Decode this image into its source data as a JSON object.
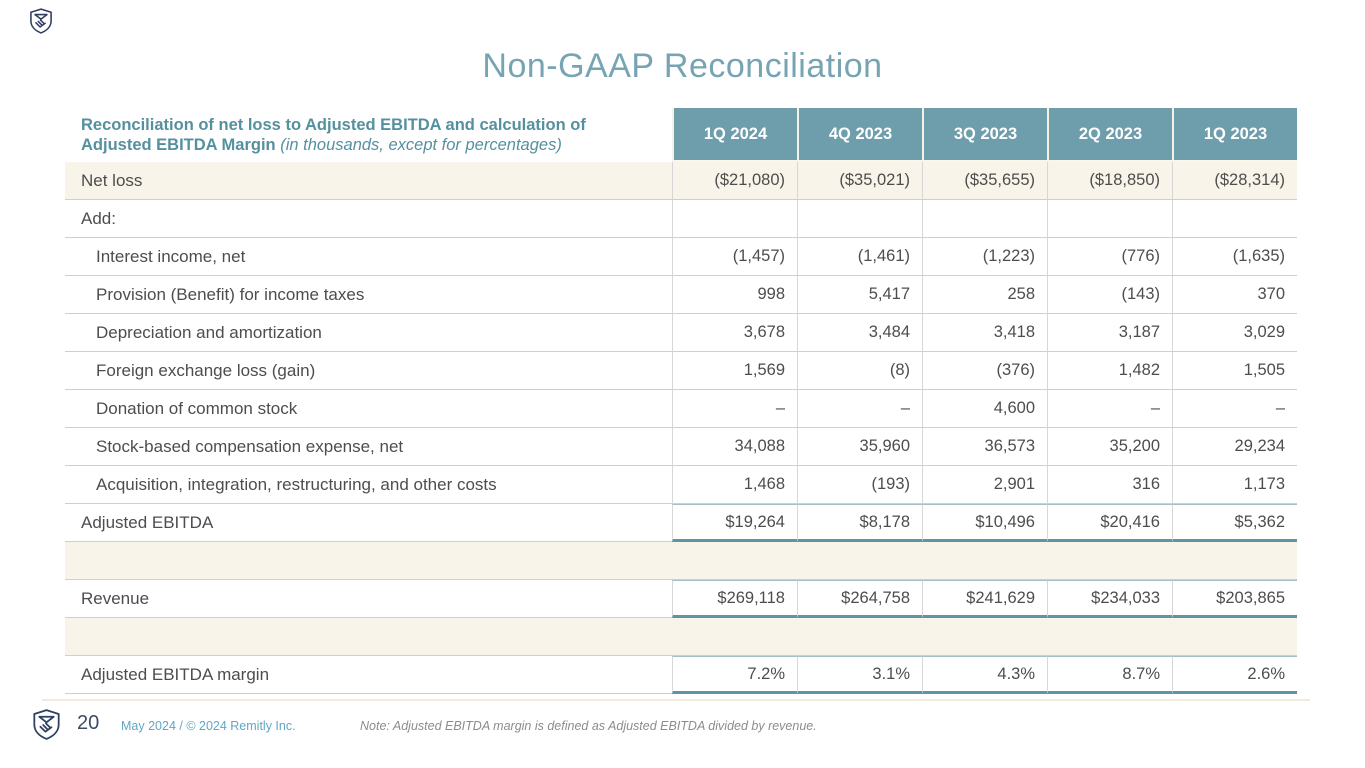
{
  "slide": {
    "title": "Non-GAAP Reconciliation",
    "page_number": "20",
    "footer_copyright": "May 2024 / © 2024 Remitly Inc.",
    "footer_note": "Note: Adjusted EBITDA margin is defined as Adjusted EBITDA divided by revenue."
  },
  "icons": {
    "top_left": "remitly-shield-logo",
    "footer": "remitly-shield-logo"
  },
  "colors": {
    "title_teal": "#76a4b3",
    "header_bg_teal": "#6e9dac",
    "header_label_teal": "#55909f",
    "highlight_cream": "#f8f4e9",
    "row_border_gray": "#cfcfcf",
    "total_border_teal": "#5e95a5",
    "body_text": "#4d4d4d",
    "footer_blue": "#5fa8c6",
    "logo_navy": "#2e3f60",
    "note_gray": "#8c8c8c"
  },
  "table": {
    "header_bold": "Reconciliation of net loss to Adjusted EBITDA and calculation of Adjusted EBITDA Margin",
    "header_italic": "(in thousands, except for percentages)",
    "columns": [
      "1Q 2024",
      "4Q 2023",
      "3Q 2023",
      "2Q 2023",
      "1Q 2023"
    ],
    "rows": [
      {
        "label": "Net loss",
        "style": "highlight",
        "values": [
          "($21,080)",
          "($35,021)",
          "($35,655)",
          "($18,850)",
          "($28,314)"
        ]
      },
      {
        "label": "Add:",
        "style": "plain",
        "values": [
          "",
          "",
          "",
          "",
          ""
        ]
      },
      {
        "label": "Interest income, net",
        "style": "indent",
        "values": [
          "(1,457)",
          "(1,461)",
          "(1,223)",
          "(776)",
          "(1,635)"
        ]
      },
      {
        "label": "Provision (Benefit) for income taxes",
        "style": "indent",
        "values": [
          "998",
          "5,417",
          "258",
          "(143)",
          "370"
        ]
      },
      {
        "label": "Depreciation and amortization",
        "style": "indent",
        "values": [
          "3,678",
          "3,484",
          "3,418",
          "3,187",
          "3,029"
        ]
      },
      {
        "label": "Foreign exchange loss (gain)",
        "style": "indent",
        "values": [
          "1,569",
          "(8)",
          "(376)",
          "1,482",
          "1,505"
        ]
      },
      {
        "label": "Donation of common stock",
        "style": "indent",
        "values": [
          "–",
          "–",
          "4,600",
          "–",
          "–"
        ]
      },
      {
        "label": "Stock-based compensation expense, net",
        "style": "indent",
        "values": [
          "34,088",
          "35,960",
          "36,573",
          "35,200",
          "29,234"
        ]
      },
      {
        "label": "Acquisition, integration, restructuring, and other costs",
        "style": "indent",
        "values": [
          "1,468",
          "(193)",
          "2,901",
          "316",
          "1,173"
        ]
      },
      {
        "label": "Adjusted EBITDA",
        "style": "total",
        "values": [
          "$19,264",
          "$8,178",
          "$10,496",
          "$20,416",
          "$5,362"
        ]
      },
      {
        "style": "spacer"
      },
      {
        "label": "Revenue",
        "style": "total",
        "values": [
          "$269,118",
          "$264,758",
          "$241,629",
          "$234,033",
          "$203,865"
        ]
      },
      {
        "style": "spacer"
      },
      {
        "label": "Adjusted EBITDA margin",
        "style": "total",
        "values": [
          "7.2%",
          "3.1%",
          "4.3%",
          "8.7%",
          "2.6%"
        ]
      }
    ]
  }
}
